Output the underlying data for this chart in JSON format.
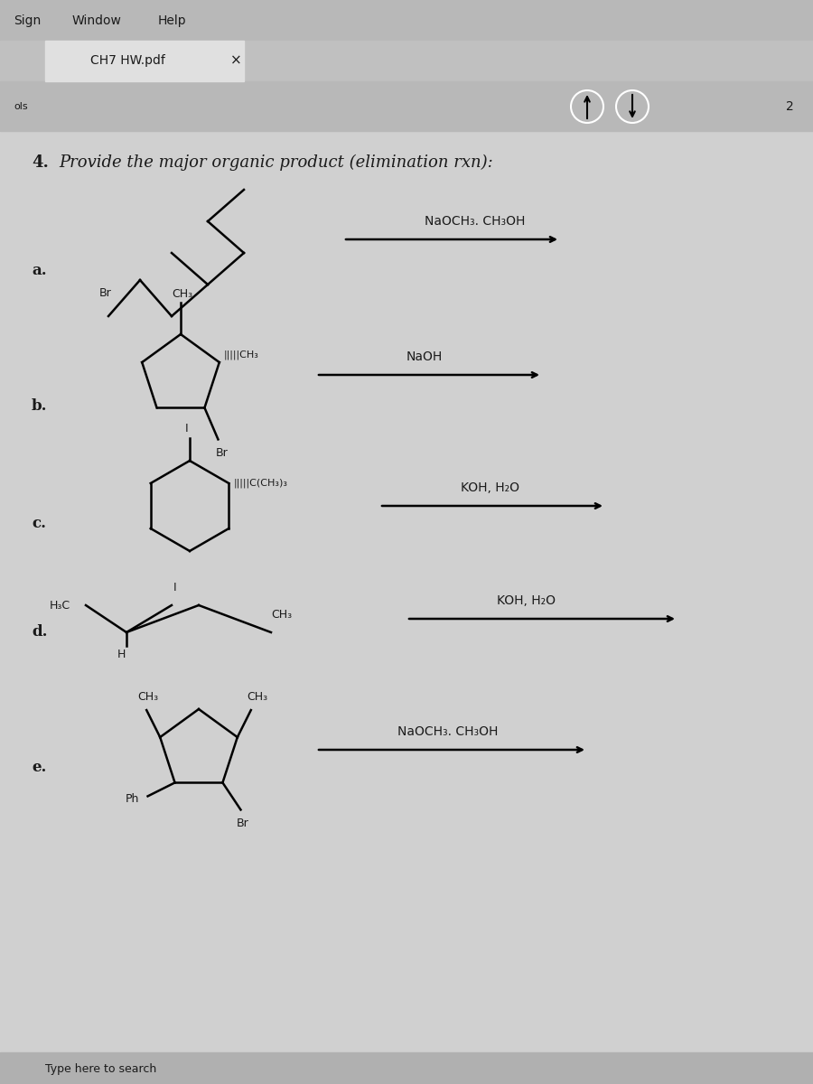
{
  "bg_color": "#d8d8d8",
  "title_bar_color": "#c8c8c8",
  "tab_color": "#e8e8e8",
  "content_bg": "#e0e0e0",
  "menu_items": [
    "Sign",
    "Window",
    "Help"
  ],
  "tab_text": "CH7 HW.pdf",
  "page_number": "2",
  "question_label": "4.",
  "question_text": "Provide the major organic product (elimination rxn):",
  "parts": [
    "a.",
    "b.",
    "c.",
    "d.",
    "e."
  ],
  "reagents": [
    "NaOCH₃. CH₃OH",
    "NaOH",
    "KOH, H₂O",
    "KOH, H₂O",
    "NaOCH₃. CH₃OH"
  ],
  "font_color": "#1a1a1a",
  "arrow_color": "#000000",
  "line_color": "#000000"
}
